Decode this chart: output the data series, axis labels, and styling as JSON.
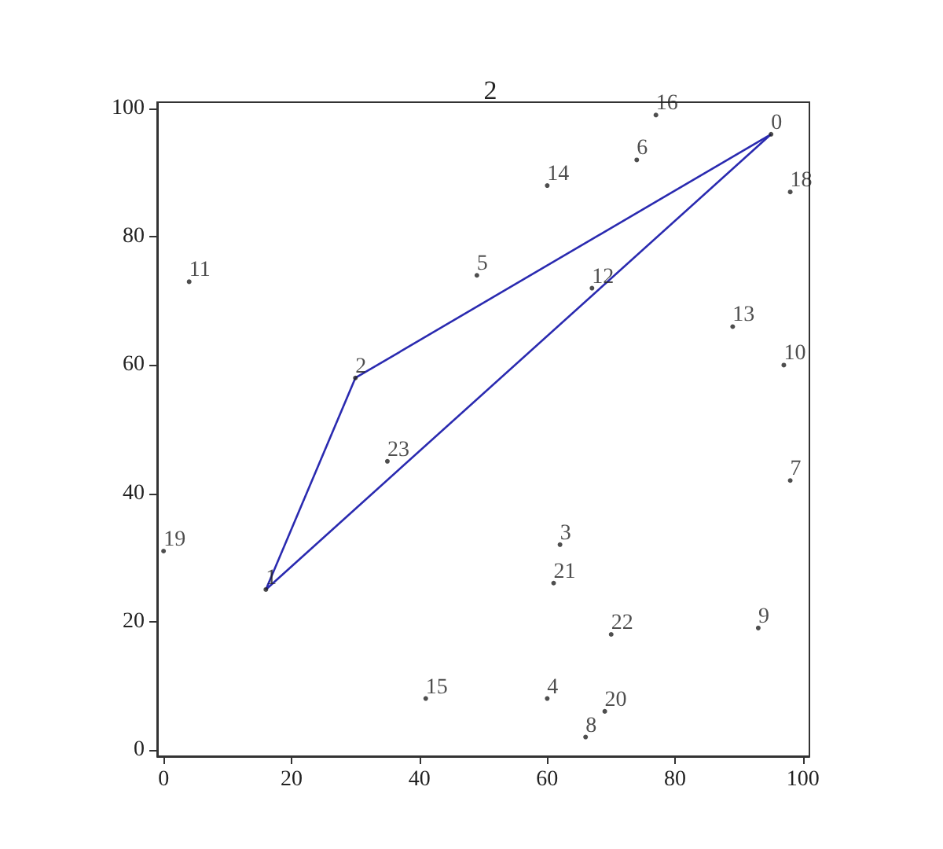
{
  "chart_data": {
    "type": "scatter",
    "title": "2",
    "xlim": [
      -1,
      101
    ],
    "ylim": [
      -1,
      101
    ],
    "xticks": [
      0,
      20,
      40,
      60,
      80,
      100
    ],
    "yticks": [
      0,
      20,
      40,
      60,
      80,
      100
    ],
    "grid": false,
    "series": [
      {
        "marker": "circle",
        "color": "#222222",
        "x": [
          95,
          16,
          30,
          62,
          60,
          49,
          74,
          98,
          66,
          93,
          97,
          4,
          67,
          89,
          60,
          41,
          77,
          98,
          0,
          69,
          61,
          70,
          35
        ],
        "values": [
          96,
          25,
          58,
          32,
          8,
          74,
          92,
          42,
          2,
          19,
          60,
          73,
          72,
          66,
          88,
          8,
          99,
          87,
          31,
          6,
          26,
          18,
          45
        ]
      },
      {
        "type": "line",
        "marker": "none",
        "color": "#2a2ab0",
        "x": [
          30,
          95
        ],
        "values": [
          58,
          96
        ]
      },
      {
        "type": "line",
        "marker": "none",
        "color": "#2a2ab0",
        "x": [
          16,
          30
        ],
        "values": [
          25,
          58
        ]
      },
      {
        "type": "line",
        "marker": "none",
        "color": "#2a2ab0",
        "x": [
          16,
          95
        ],
        "values": [
          25,
          96
        ]
      }
    ],
    "annotations": [
      {
        "text": "0",
        "x": 95,
        "y": 96
      },
      {
        "text": "1",
        "x": 16,
        "y": 25
      },
      {
        "text": "2",
        "x": 30,
        "y": 58
      },
      {
        "text": "3",
        "x": 62,
        "y": 32
      },
      {
        "text": "4",
        "x": 60,
        "y": 8
      },
      {
        "text": "5",
        "x": 49,
        "y": 74
      },
      {
        "text": "6",
        "x": 74,
        "y": 92
      },
      {
        "text": "7",
        "x": 98,
        "y": 42
      },
      {
        "text": "8",
        "x": 66,
        "y": 2
      },
      {
        "text": "9",
        "x": 93,
        "y": 19
      },
      {
        "text": "10",
        "x": 97,
        "y": 60
      },
      {
        "text": "11",
        "x": 4,
        "y": 73
      },
      {
        "text": "12",
        "x": 67,
        "y": 72
      },
      {
        "text": "13",
        "x": 89,
        "y": 66
      },
      {
        "text": "14",
        "x": 60,
        "y": 88
      },
      {
        "text": "15",
        "x": 41,
        "y": 8
      },
      {
        "text": "16",
        "x": 77,
        "y": 99
      },
      {
        "text": "18",
        "x": 98,
        "y": 87
      },
      {
        "text": "19",
        "x": 0,
        "y": 31
      },
      {
        "text": "20",
        "x": 69,
        "y": 6
      },
      {
        "text": "21",
        "x": 61,
        "y": 26
      },
      {
        "text": "22",
        "x": 70,
        "y": 18
      },
      {
        "text": "23",
        "x": 35,
        "y": 45
      }
    ]
  }
}
